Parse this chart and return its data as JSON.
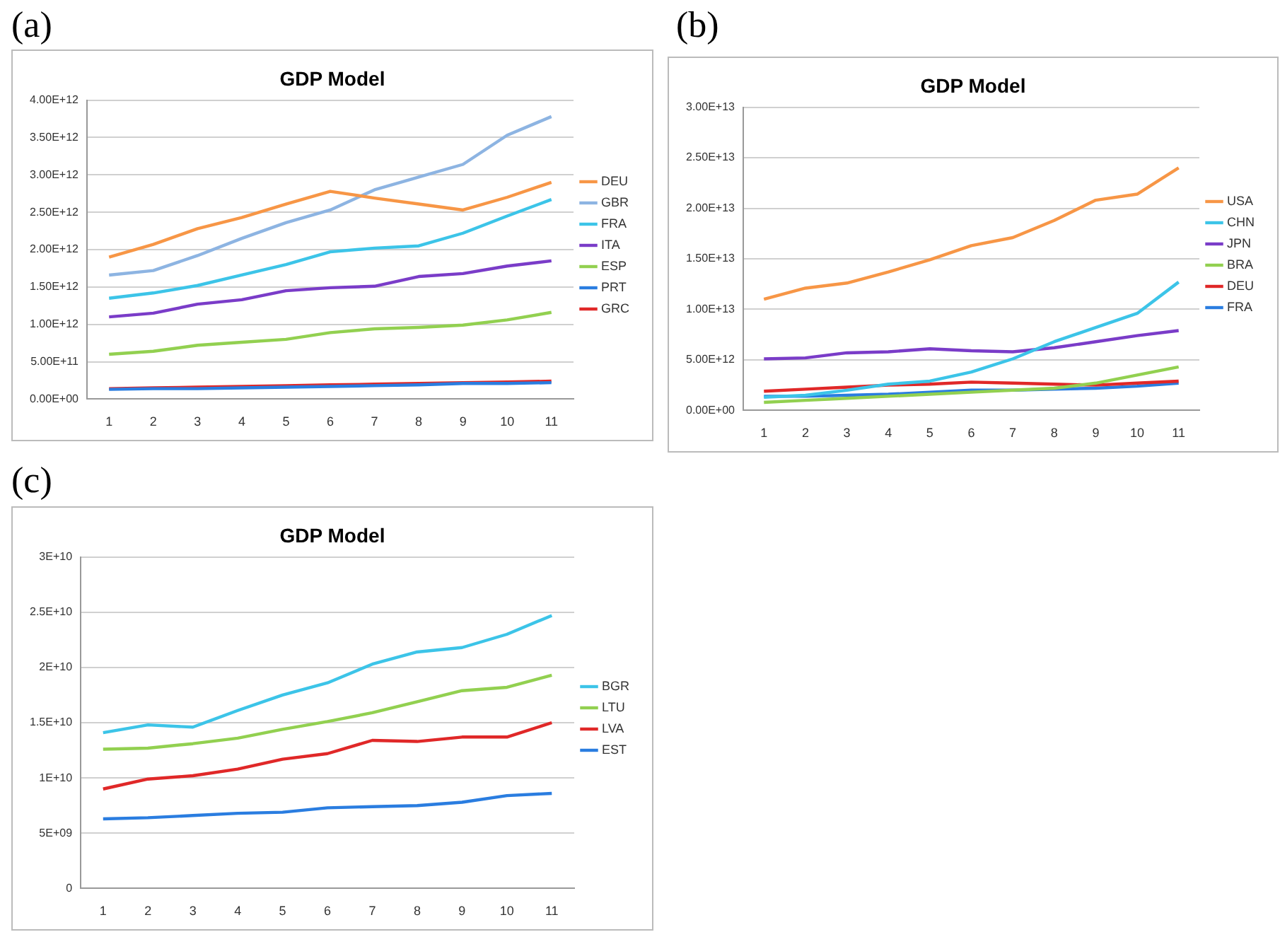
{
  "chart_data": [
    {
      "type": "line",
      "title": "GDP Model",
      "annotations": [
        "(a)"
      ],
      "categories": [
        "1",
        "2",
        "3",
        "4",
        "5",
        "6",
        "7",
        "8",
        "9",
        "10",
        "11"
      ],
      "ylim": [
        0,
        4000000000000.0
      ],
      "yticks": [
        {
          "value": 0,
          "label": "0.00E+00"
        },
        {
          "value": 500000000000.0,
          "label": "5.00E+11"
        },
        {
          "value": 1000000000000.0,
          "label": "1.00E+12"
        },
        {
          "value": 1500000000000.0,
          "label": "1.50E+12"
        },
        {
          "value": 2000000000000.0,
          "label": "2.00E+12"
        },
        {
          "value": 2500000000000.0,
          "label": "2.50E+12"
        },
        {
          "value": 3000000000000.0,
          "label": "3.00E+12"
        },
        {
          "value": 3500000000000.0,
          "label": "3.50E+12"
        },
        {
          "value": 4000000000000.0,
          "label": "4.00E+12"
        }
      ],
      "grid": "y",
      "legend": "right",
      "marker": "none",
      "series": [
        {
          "name": "DEU",
          "color": "#f79646",
          "values": [
            1900000000000.0,
            2070000000000.0,
            2280000000000.0,
            2430000000000.0,
            2610000000000.0,
            2780000000000.0,
            2690000000000.0,
            2610000000000.0,
            2530000000000.0,
            2700000000000.0,
            2900000000000.0
          ]
        },
        {
          "name": "GBR",
          "color": "#8db4e2",
          "values": [
            1660000000000.0,
            1720000000000.0,
            1920000000000.0,
            2150000000000.0,
            2360000000000.0,
            2530000000000.0,
            2800000000000.0,
            2970000000000.0,
            3140000000000.0,
            3530000000000.0,
            3780000000000.0
          ]
        },
        {
          "name": "FRA",
          "color": "#3cc4e8",
          "values": [
            1350000000000.0,
            1420000000000.0,
            1520000000000.0,
            1660000000000.0,
            1800000000000.0,
            1970000000000.0,
            2020000000000.0,
            2050000000000.0,
            2220000000000.0,
            2450000000000.0,
            2670000000000.0
          ]
        },
        {
          "name": "ITA",
          "color": "#7a3cc8",
          "values": [
            1100000000000.0,
            1150000000000.0,
            1270000000000.0,
            1330000000000.0,
            1450000000000.0,
            1490000000000.0,
            1510000000000.0,
            1640000000000.0,
            1680000000000.0,
            1780000000000.0,
            1850000000000.0
          ]
        },
        {
          "name": "ESP",
          "color": "#92d050",
          "values": [
            600000000000.0,
            640000000000.0,
            720000000000.0,
            760000000000.0,
            800000000000.0,
            890000000000.0,
            940000000000.0,
            960000000000.0,
            990000000000.0,
            1060000000000.0,
            1160000000000.0
          ]
        },
        {
          "name": "PRT",
          "color": "#2a7de0",
          "values": [
            130000000000.0,
            140000000000.0,
            140000000000.0,
            150000000000.0,
            160000000000.0,
            170000000000.0,
            180000000000.0,
            190000000000.0,
            210000000000.0,
            210000000000.0,
            220000000000.0
          ]
        },
        {
          "name": "GRC",
          "color": "#e02828",
          "values": [
            140000000000.0,
            150000000000.0,
            160000000000.0,
            170000000000.0,
            180000000000.0,
            190000000000.0,
            200000000000.0,
            210000000000.0,
            220000000000.0,
            230000000000.0,
            240000000000.0
          ]
        }
      ]
    },
    {
      "type": "line",
      "title": "GDP Model",
      "annotations": [
        "(b)"
      ],
      "categories": [
        "1",
        "2",
        "3",
        "4",
        "5",
        "6",
        "7",
        "8",
        "9",
        "10",
        "11"
      ],
      "ylim": [
        0,
        30000000000000.0
      ],
      "yticks": [
        {
          "value": 0,
          "label": "0.00E+00"
        },
        {
          "value": 5000000000000.0,
          "label": "5.00E+12"
        },
        {
          "value": 10000000000000.0,
          "label": "1.00E+13"
        },
        {
          "value": 15000000000000.0,
          "label": "1.50E+13"
        },
        {
          "value": 20000000000000.0,
          "label": "2.00E+13"
        },
        {
          "value": 25000000000000.0,
          "label": "2.50E+13"
        },
        {
          "value": 30000000000000.0,
          "label": "3.00E+13"
        }
      ],
      "grid": "y",
      "legend": "right",
      "marker": "none",
      "series": [
        {
          "name": "USA",
          "color": "#f79646",
          "values": [
            11000000000000.0,
            12100000000000.0,
            12600000000000.0,
            13700000000000.0,
            14900000000000.0,
            16300000000000.0,
            17100000000000.0,
            18800000000000.0,
            20800000000000.0,
            21400000000000.0,
            24000000000000.0
          ]
        },
        {
          "name": "CHN",
          "color": "#3cc4e8",
          "values": [
            1300000000000.0,
            1500000000000.0,
            2000000000000.0,
            2600000000000.0,
            2900000000000.0,
            3800000000000.0,
            5100000000000.0,
            6800000000000.0,
            8200000000000.0,
            9600000000000.0,
            12700000000000.0
          ]
        },
        {
          "name": "JPN",
          "color": "#7a3cc8",
          "values": [
            5100000000000.0,
            5200000000000.0,
            5700000000000.0,
            5800000000000.0,
            6100000000000.0,
            5900000000000.0,
            5800000000000.0,
            6200000000000.0,
            6800000000000.0,
            7400000000000.0,
            7900000000000.0
          ]
        },
        {
          "name": "BRA",
          "color": "#92d050",
          "values": [
            800000000000.0,
            1000000000000.0,
            1200000000000.0,
            1400000000000.0,
            1600000000000.0,
            1800000000000.0,
            2000000000000.0,
            2200000000000.0,
            2700000000000.0,
            3500000000000.0,
            4300000000000.0
          ]
        },
        {
          "name": "DEU",
          "color": "#e02828",
          "values": [
            1900000000000.0,
            2100000000000.0,
            2300000000000.0,
            2500000000000.0,
            2600000000000.0,
            2800000000000.0,
            2700000000000.0,
            2600000000000.0,
            2500000000000.0,
            2700000000000.0,
            2900000000000.0
          ]
        },
        {
          "name": "FRA",
          "color": "#2a7de0",
          "values": [
            1400000000000.0,
            1400000000000.0,
            1500000000000.0,
            1600000000000.0,
            1800000000000.0,
            2000000000000.0,
            2000000000000.0,
            2100000000000.0,
            2200000000000.0,
            2400000000000.0,
            2700000000000.0
          ]
        }
      ]
    },
    {
      "type": "line",
      "title": "GDP Model",
      "annotations": [
        "(c)"
      ],
      "categories": [
        "1",
        "2",
        "3",
        "4",
        "5",
        "6",
        "7",
        "8",
        "9",
        "10",
        "11"
      ],
      "ylim": [
        0,
        30000000000.0
      ],
      "yticks": [
        0,
        {
          "value": 5000000000.0,
          "label": "5E+09"
        },
        {
          "value": 10000000000.0,
          "label": "1E+10"
        },
        {
          "value": 15000000000.0,
          "label": "1.5E+10"
        },
        {
          "value": 20000000000.0,
          "label": "2E+10"
        },
        {
          "value": 25000000000.0,
          "label": "2.5E+10"
        },
        {
          "value": 30000000000.0,
          "label": "3E+10"
        }
      ],
      "grid": "y",
      "legend": "right",
      "marker": "none",
      "series": [
        {
          "name": "BGR",
          "color": "#3cc4e8",
          "values": [
            14100000000.0,
            14800000000.0,
            14600000000.0,
            16100000000.0,
            17500000000.0,
            18600000000.0,
            20300000000.0,
            21400000000.0,
            21800000000.0,
            23000000000.0,
            24700000000.0
          ]
        },
        {
          "name": "LTU",
          "color": "#92d050",
          "values": [
            12600000000.0,
            12700000000.0,
            13100000000.0,
            13600000000.0,
            14400000000.0,
            15100000000.0,
            15900000000.0,
            16900000000.0,
            17900000000.0,
            18200000000.0,
            19300000000.0
          ]
        },
        {
          "name": "LVA",
          "color": "#e02828",
          "values": [
            9000000000.0,
            9900000000.0,
            10200000000.0,
            10800000000.0,
            11700000000.0,
            12200000000.0,
            13400000000.0,
            13300000000.0,
            13700000000.0,
            13700000000.0,
            15000000000.0
          ]
        },
        {
          "name": "EST",
          "color": "#2a7de0",
          "values": [
            6300000000.0,
            6400000000.0,
            6600000000.0,
            6800000000.0,
            6900000000.0,
            7300000000.0,
            7400000000.0,
            7500000000.0,
            7800000000.0,
            8400000000.0,
            8600000000.0
          ]
        }
      ]
    }
  ]
}
